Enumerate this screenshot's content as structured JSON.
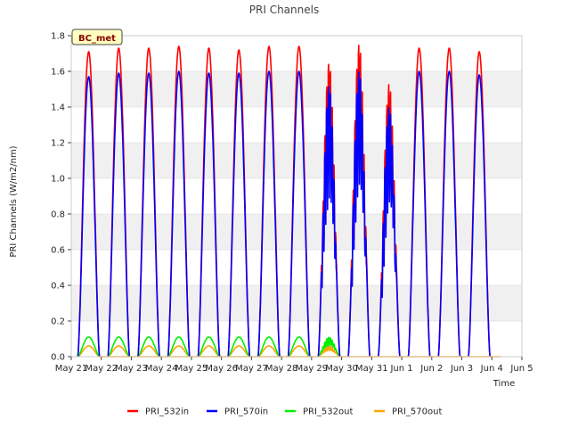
{
  "chart_data": {
    "type": "line",
    "title": "PRI Channels",
    "xlabel": "Time",
    "ylabel": "PRI Channels (W/m2/nm)",
    "badge": "BC_met",
    "ylim": [
      0.0,
      1.8
    ],
    "xlim": [
      0,
      15
    ],
    "y_ticks": [
      0.0,
      0.2,
      0.4,
      0.6,
      0.8,
      1.0,
      1.2,
      1.4,
      1.6,
      1.8
    ],
    "y_tick_labels": [
      "0.0",
      "0.2",
      "0.4",
      "0.6",
      "0.8",
      "1.0",
      "1.2",
      "1.4",
      "1.6",
      "1.8"
    ],
    "x_ticks": [
      0,
      1,
      2,
      3,
      4,
      5,
      6,
      7,
      8,
      9,
      10,
      11,
      12,
      13,
      14,
      15
    ],
    "x_tick_labels": [
      "May 21",
      "May 22",
      "May 23",
      "May 24",
      "May 25",
      "May 26",
      "May 27",
      "May 28",
      "May 29",
      "May 30",
      "May 31",
      "Jun 1",
      "Jun 2",
      "Jun 3",
      "Jun 4",
      "Jun 5"
    ],
    "grid": "horizontal bands",
    "legend_position": "bottom",
    "days": [
      "May 21",
      "May 22",
      "May 23",
      "May 24",
      "May 25",
      "May 26",
      "May 27",
      "May 28",
      "May 29",
      "May 30",
      "May 31",
      "Jun 1",
      "Jun 2",
      "Jun 3"
    ],
    "series": [
      {
        "name": "PRI_532in",
        "color": "#ff0000",
        "daily_peaks": [
          1.71,
          1.73,
          1.73,
          1.74,
          1.73,
          1.72,
          1.74,
          1.74,
          1.67,
          1.77,
          1.54,
          1.73,
          1.73,
          1.71
        ]
      },
      {
        "name": "PRI_570in",
        "color": "#0000ff",
        "daily_peaks": [
          1.57,
          1.59,
          1.59,
          1.6,
          1.59,
          1.59,
          1.6,
          1.6,
          1.54,
          1.62,
          1.41,
          1.6,
          1.6,
          1.58
        ]
      },
      {
        "name": "PRI_532out",
        "color": "#00ee00",
        "daily_peaks": [
          0.11,
          0.11,
          0.11,
          0.11,
          0.11,
          0.11,
          0.11,
          0.11,
          0.11,
          0,
          0,
          0,
          0,
          0
        ]
      },
      {
        "name": "PRI_570out",
        "color": "#ffa500",
        "daily_peaks": [
          0.06,
          0.06,
          0.06,
          0.06,
          0.06,
          0.06,
          0.06,
          0.06,
          0.06,
          0,
          0,
          0,
          0,
          0
        ]
      }
    ]
  }
}
